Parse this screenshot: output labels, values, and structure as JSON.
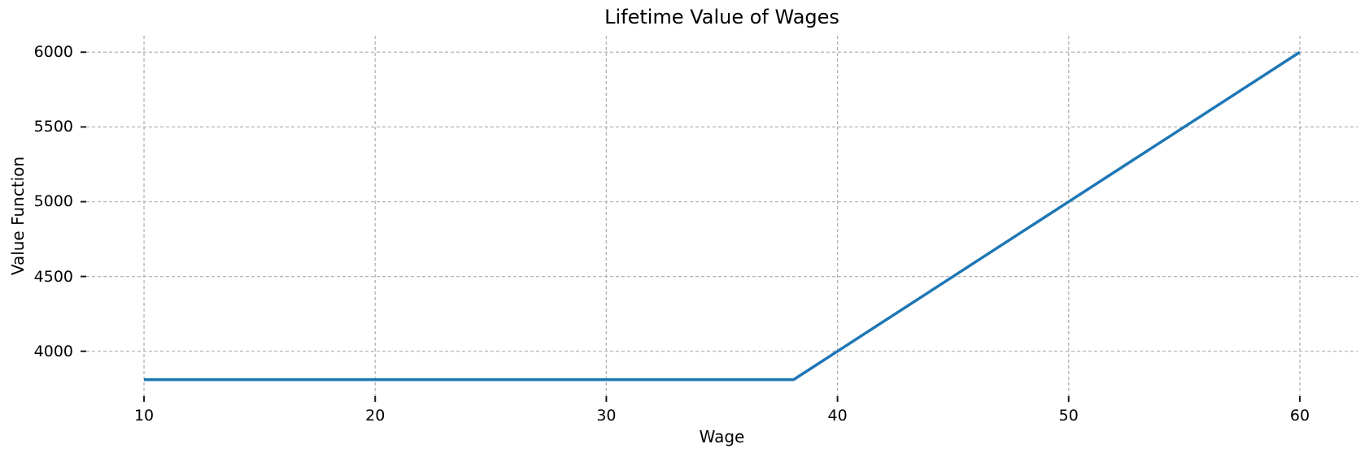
{
  "figure": {
    "background": "#ffffff",
    "text_color": "#000000"
  },
  "chart_data": {
    "type": "line",
    "title": "Lifetime Value of Wages",
    "xlabel": "Wage",
    "ylabel": "Value Function",
    "xlim": [
      7.5,
      62.5
    ],
    "ylim": [
      3700,
      6110
    ],
    "xticks": [
      10,
      20,
      30,
      40,
      50,
      60
    ],
    "yticks": [
      4000,
      4500,
      5000,
      5500,
      6000
    ],
    "grid": {
      "on": true,
      "linestyle": "dashed",
      "color": "#b3b3b3"
    },
    "legend_position": "none",
    "series": [
      {
        "name": "value_function",
        "color": "#1f77b4",
        "line_width": 3.5,
        "points": [
          [
            10,
            3810
          ],
          [
            38.1,
            3810
          ],
          [
            60,
            6000
          ]
        ],
        "shape_note": "flat at ~3810 from wage 10 to reservation wage ~38.1, then linear (slope ~100 per wage unit) up to 6000 at wage 60"
      }
    ],
    "axis_style": {
      "spines_visible": false,
      "tick_direction": "out",
      "tick_color": "#1a1a1a"
    }
  }
}
